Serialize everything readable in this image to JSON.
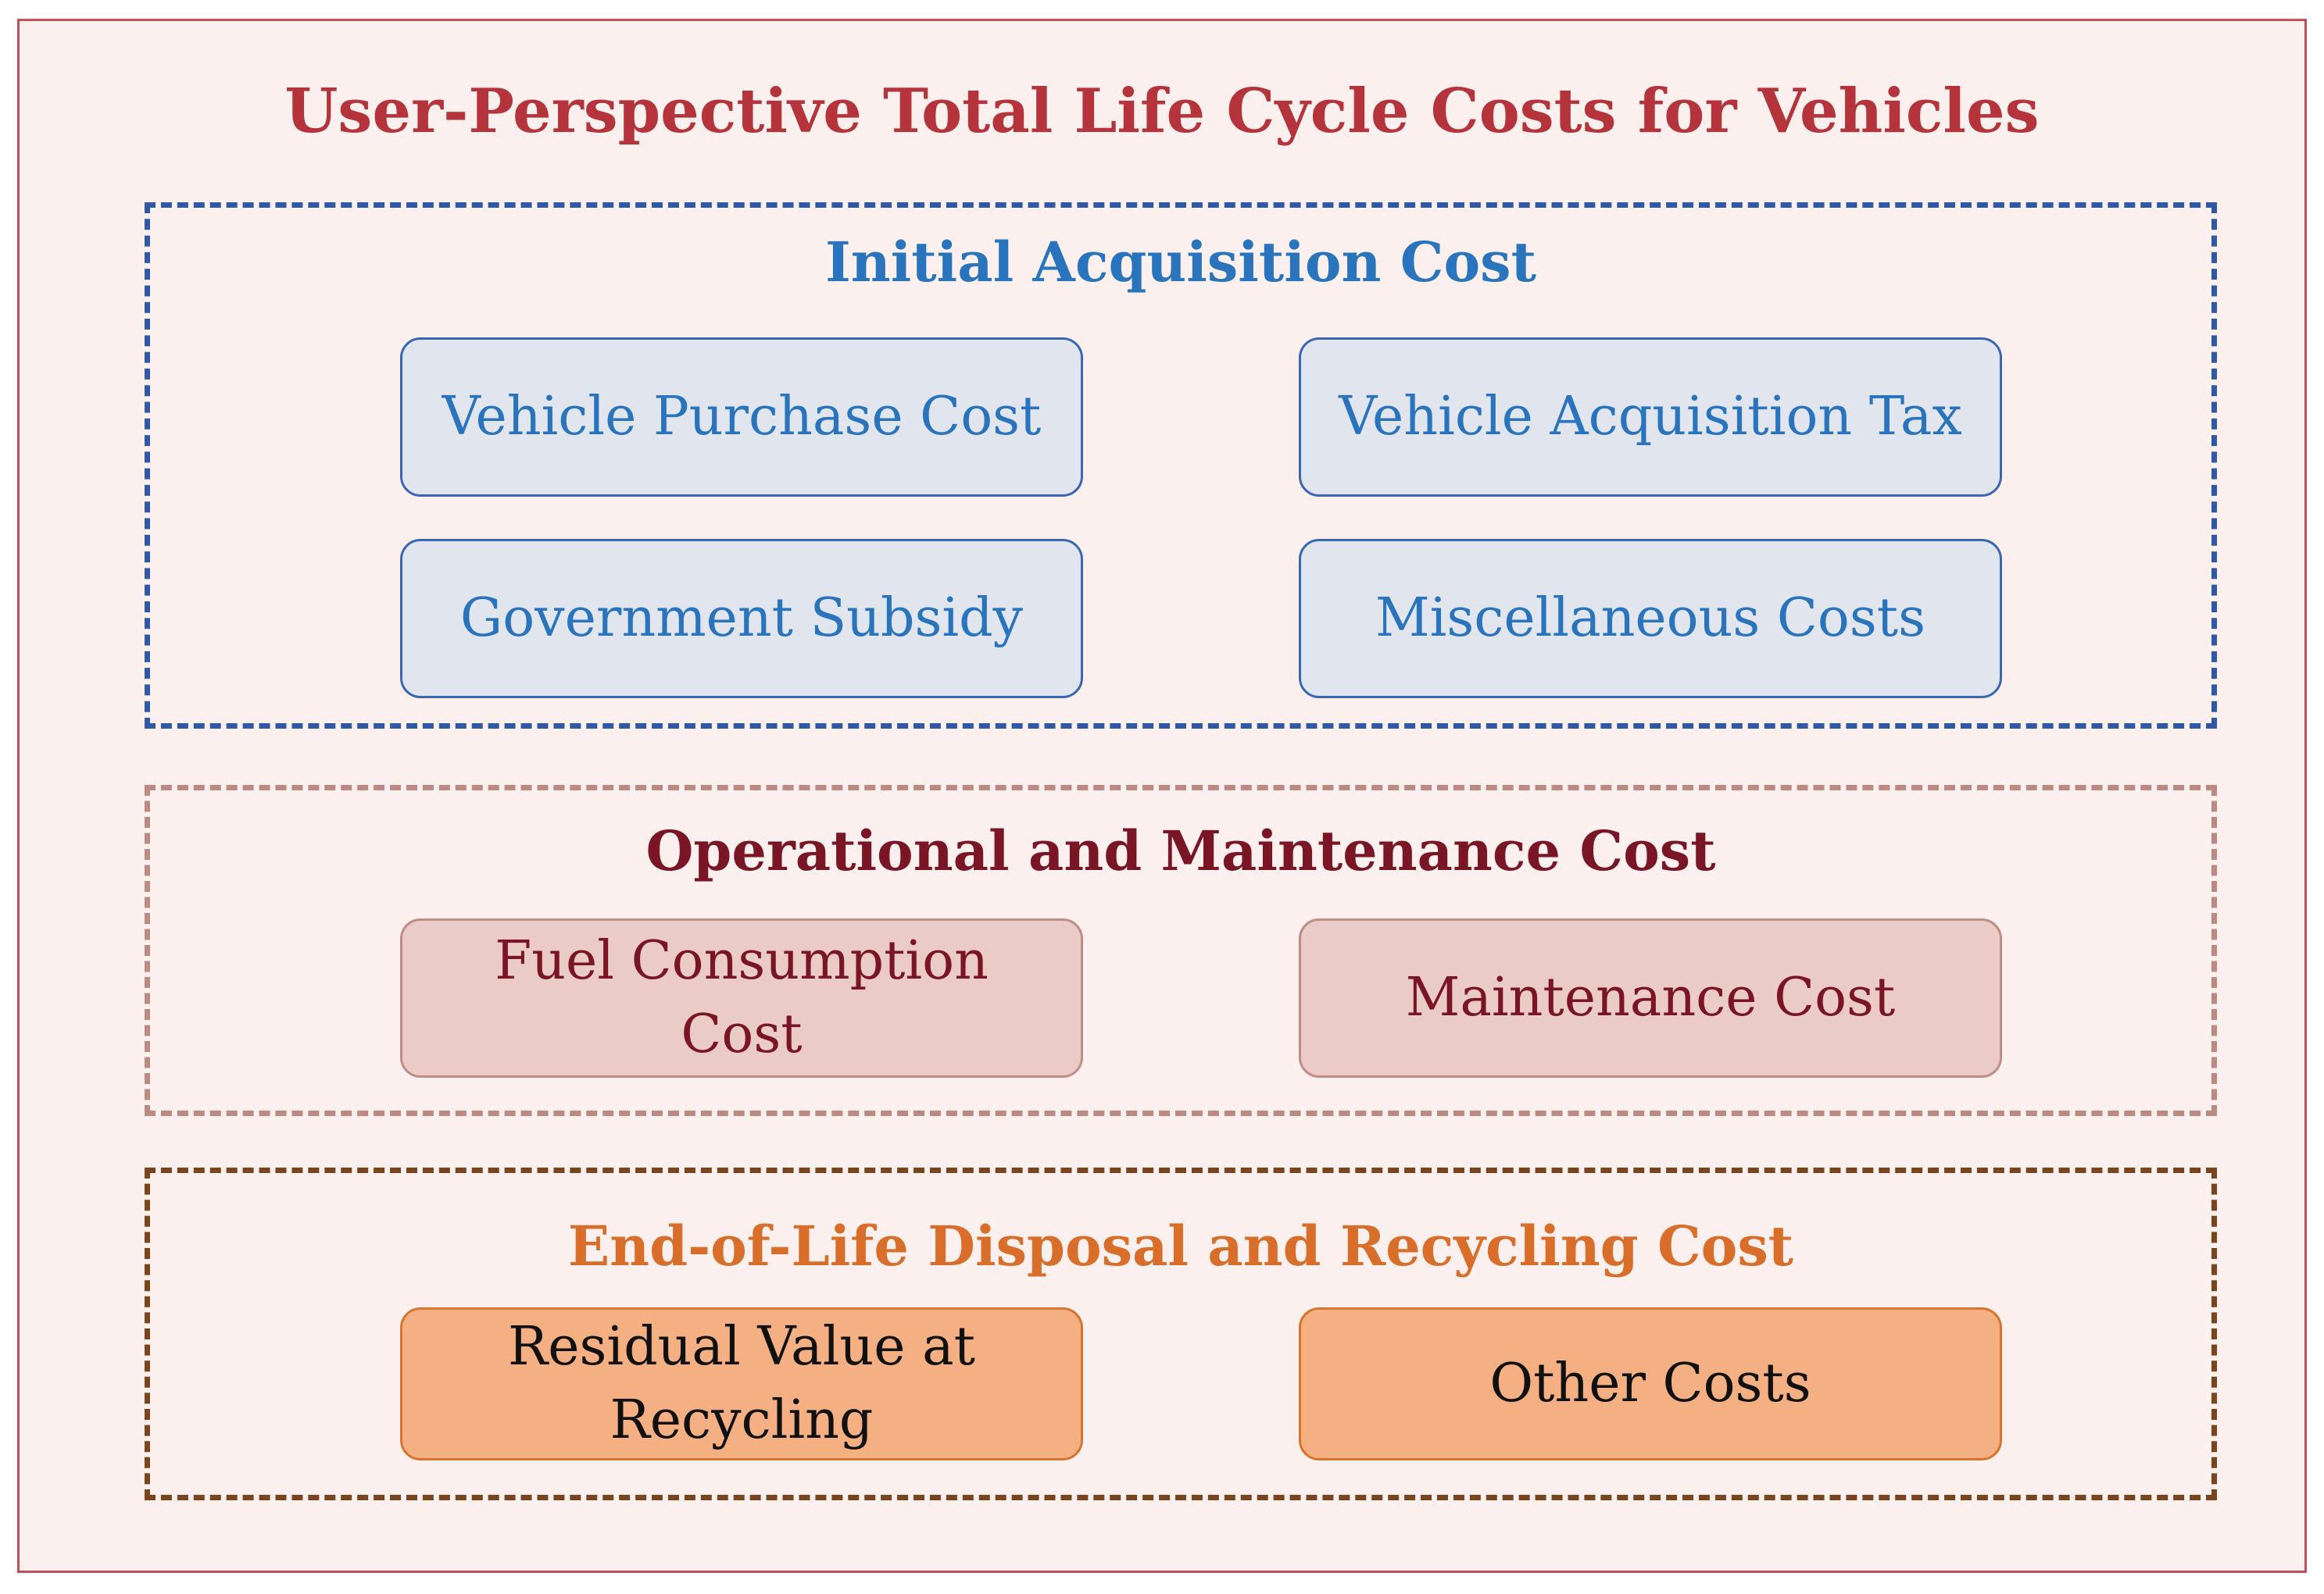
{
  "diagram": {
    "title": "User-Perspective Total Life Cycle Costs for Vehicles",
    "sections": [
      {
        "title": "Initial Acquisition Cost",
        "items": [
          "Vehicle Purchase Cost",
          "Vehicle Acquisition Tax",
          "Government Subsidy",
          "Miscellaneous Costs"
        ]
      },
      {
        "title": "Operational and Maintenance Cost",
        "items": [
          "Fuel Consumption Cost",
          "Maintenance Cost"
        ]
      },
      {
        "title": "End-of-Life Disposal and Recycling Cost",
        "items": [
          "Residual Value at Recycling",
          "Other Costs"
        ]
      }
    ]
  },
  "colors": {
    "title": "#b5343c",
    "initial_border": "#3058a8",
    "initial_text": "#2a74bd",
    "operational_border": "#bd8a82",
    "operational_text": "#7a1526",
    "eol_border": "#7a451d",
    "eol_text": "#d86e2a",
    "eol_box_fill": "#f4b083"
  }
}
